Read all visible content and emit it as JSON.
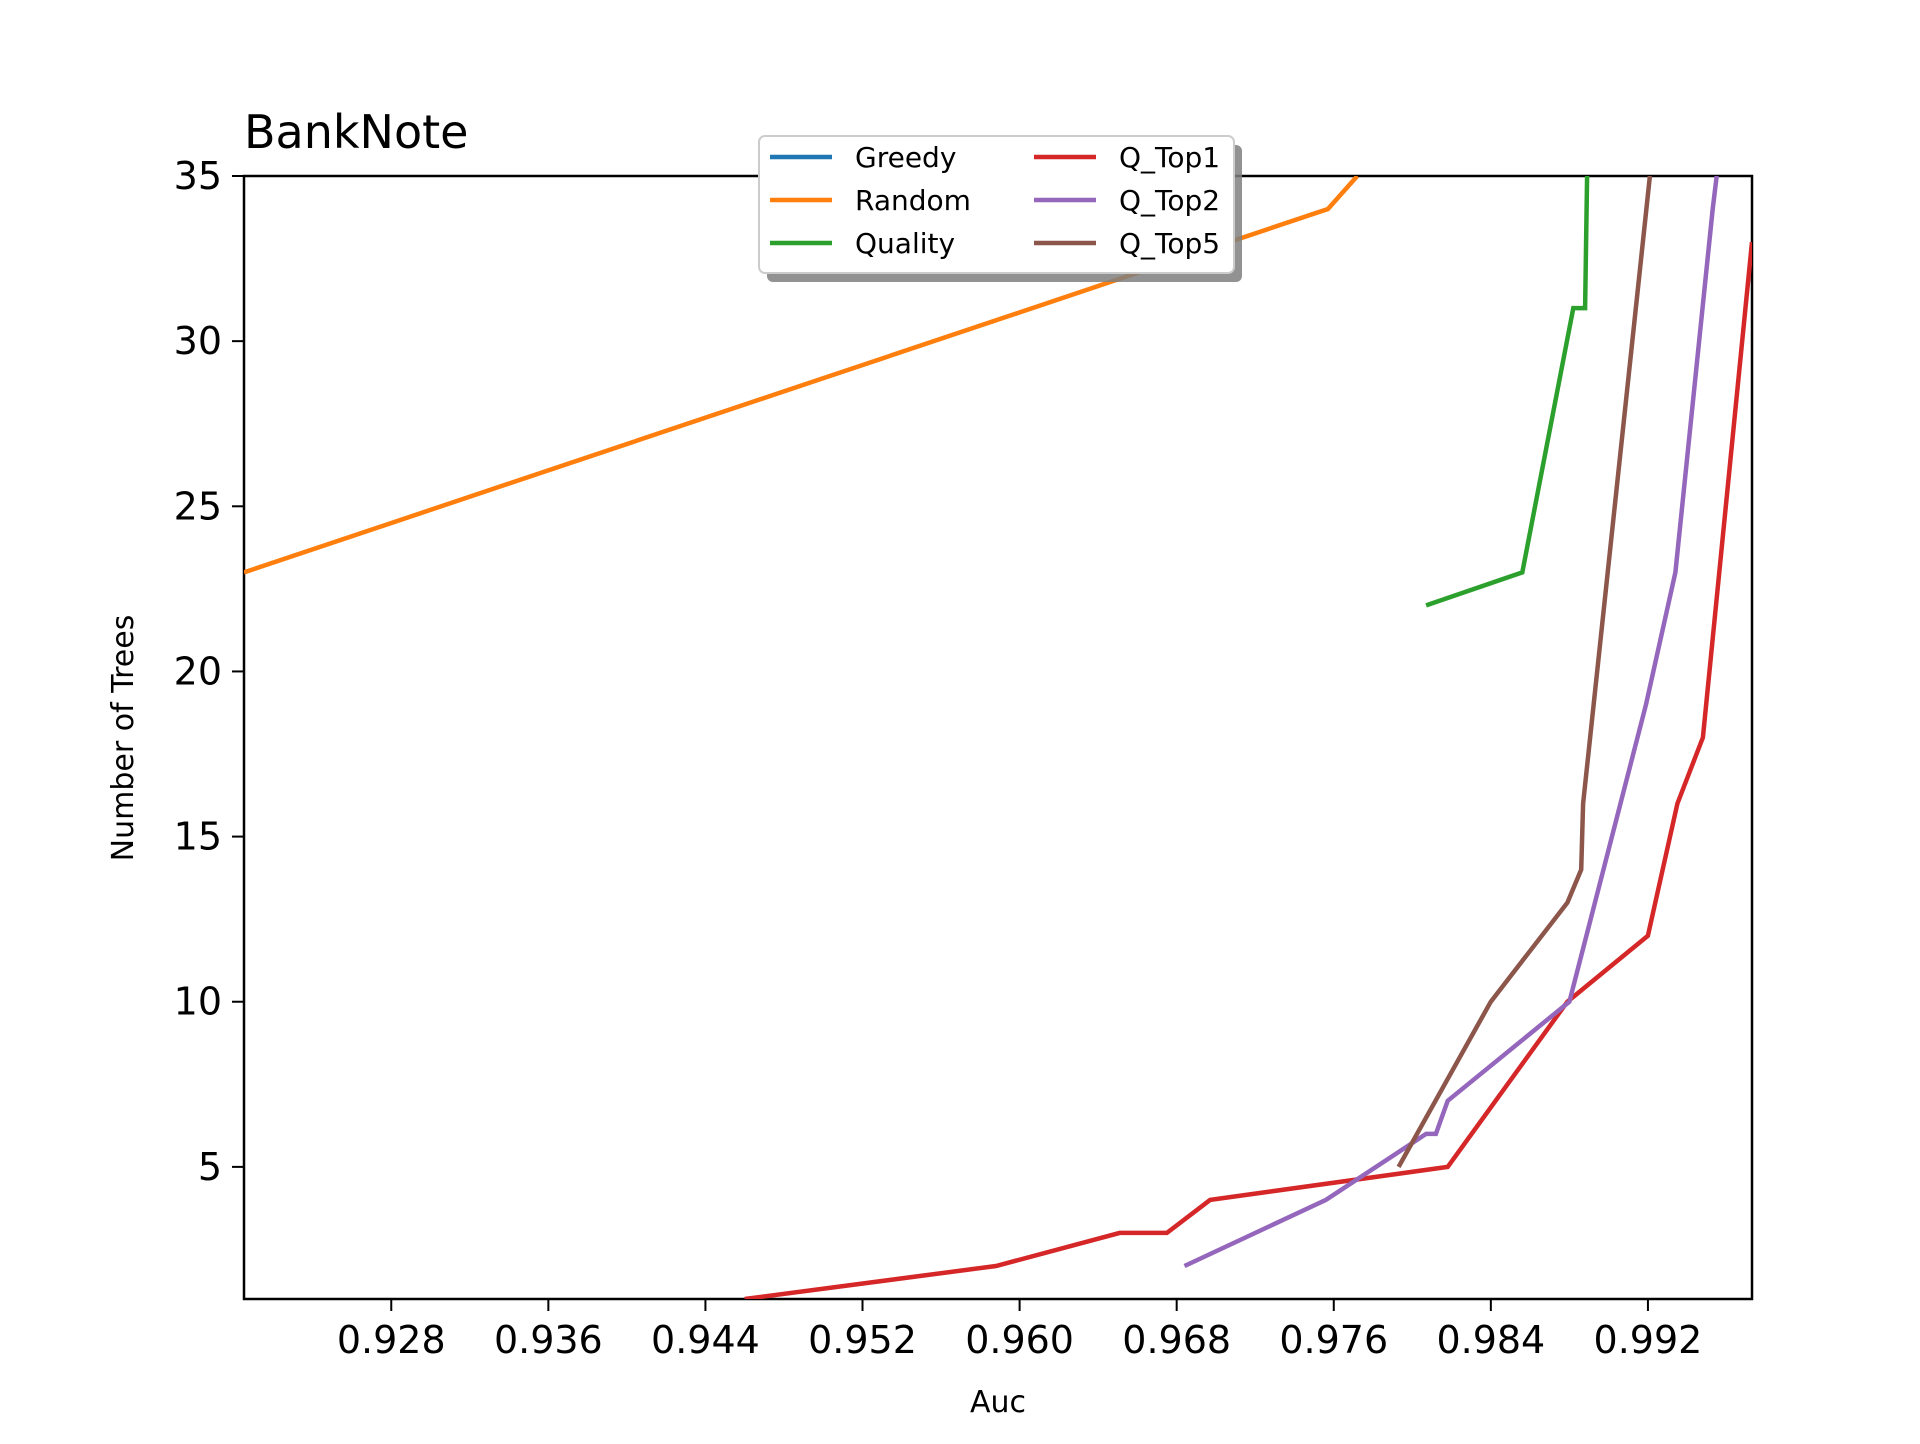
{
  "chart_data": {
    "type": "line",
    "title": "BankNote",
    "xlabel": "Auc",
    "ylabel": "Number of Trees",
    "xlim": [
      0.9205,
      0.9973
    ],
    "ylim": [
      1,
      35
    ],
    "xticks": [
      0.928,
      0.936,
      0.944,
      0.952,
      0.96,
      0.968,
      0.976,
      0.984,
      0.992
    ],
    "xtick_labels": [
      "0.928",
      "0.936",
      "0.944",
      "0.952",
      "0.960",
      "0.968",
      "0.976",
      "0.984",
      "0.992"
    ],
    "yticks": [
      5,
      10,
      15,
      20,
      25,
      30,
      35
    ],
    "ytick_labels": [
      "5",
      "10",
      "15",
      "20",
      "25",
      "30",
      "35"
    ],
    "grid": false,
    "legend_position": "top-center",
    "legend_columns": 2,
    "series": [
      {
        "name": "Greedy",
        "color": "#1f77b4",
        "points": []
      },
      {
        "name": "Random",
        "color": "#ff7f0e",
        "points": [
          [
            0.9205,
            23
          ],
          [
            0.9757,
            34
          ],
          [
            0.9772,
            35
          ]
        ]
      },
      {
        "name": "Quality",
        "color": "#2ca02c",
        "points": [
          [
            0.9807,
            22
          ],
          [
            0.9856,
            23
          ],
          [
            0.9882,
            31
          ],
          [
            0.9888,
            31
          ],
          [
            0.9889,
            35
          ]
        ]
      },
      {
        "name": "Q_Top1",
        "color": "#d62728",
        "points": [
          [
            0.946,
            1
          ],
          [
            0.9588,
            2
          ],
          [
            0.9651,
            3
          ],
          [
            0.9675,
            3
          ],
          [
            0.9697,
            4
          ],
          [
            0.9818,
            5
          ],
          [
            0.9879,
            10
          ],
          [
            0.992,
            12
          ],
          [
            0.9935,
            16
          ],
          [
            0.9948,
            18
          ],
          [
            0.9973,
            33
          ]
        ]
      },
      {
        "name": "Q_Top2",
        "color": "#9467bd",
        "points": [
          [
            0.9684,
            2
          ],
          [
            0.9756,
            4
          ],
          [
            0.9807,
            6
          ],
          [
            0.9812,
            6
          ],
          [
            0.9818,
            7
          ],
          [
            0.988,
            10
          ],
          [
            0.9919,
            19
          ],
          [
            0.9934,
            23
          ],
          [
            0.9953,
            34
          ],
          [
            0.9955,
            35
          ]
        ]
      },
      {
        "name": "Q_Top5",
        "color": "#8c564b",
        "points": [
          [
            0.9793,
            5
          ],
          [
            0.984,
            10
          ],
          [
            0.9879,
            13
          ],
          [
            0.9886,
            14
          ],
          [
            0.9887,
            16
          ],
          [
            0.9921,
            35
          ]
        ]
      }
    ]
  }
}
